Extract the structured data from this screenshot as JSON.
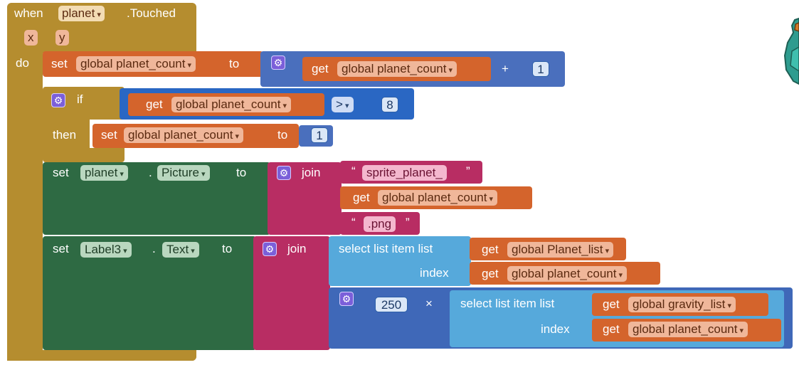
{
  "event": {
    "when": "when",
    "component": "planet",
    "event_name": ".Touched",
    "param_x": "x",
    "param_y": "y",
    "do": "do"
  },
  "line1": {
    "set": "set",
    "var": "global planet_count",
    "to": "to",
    "get": "get",
    "get_var": "global planet_count",
    "op": "+",
    "num": "1"
  },
  "if_block": {
    "if": "if",
    "then": "then",
    "get": "get",
    "get_var": "global planet_count",
    "op": ">",
    "num": "8",
    "set": "set",
    "set_var": "global planet_count",
    "to": "to",
    "set_num": "1"
  },
  "picture_line": {
    "set": "set",
    "component": "planet",
    "dot": ".",
    "property": "Picture",
    "to": "to",
    "join": "join",
    "str1": "sprite_planet_",
    "get": "get",
    "get_var": "global planet_count",
    "str2": ".png",
    "quote_open": "“",
    "quote_close": "”"
  },
  "label_line": {
    "set": "set",
    "component": "Label3",
    "dot": ".",
    "property": "Text",
    "to": "to",
    "join": "join",
    "select1": "select list item  list",
    "index1": "index",
    "get": "get",
    "list1": "global Planet_list",
    "index_var1": "global planet_count",
    "num": "250",
    "times": "×",
    "select2": "select list item  list",
    "index2": "index",
    "list2": "global gravity_list",
    "index_var2": "global planet_count"
  },
  "icons": {
    "gear": "gear-icon",
    "dropdown": "dropdown-arrow-icon",
    "mascot": "backpack-mascot-icon"
  },
  "colors": {
    "control": "#b58d2f",
    "procedure_var": "#d4642c",
    "math": "#4a6fbd",
    "component": "#2e6a43",
    "text": "#b82d63",
    "list": "#56a9db"
  }
}
